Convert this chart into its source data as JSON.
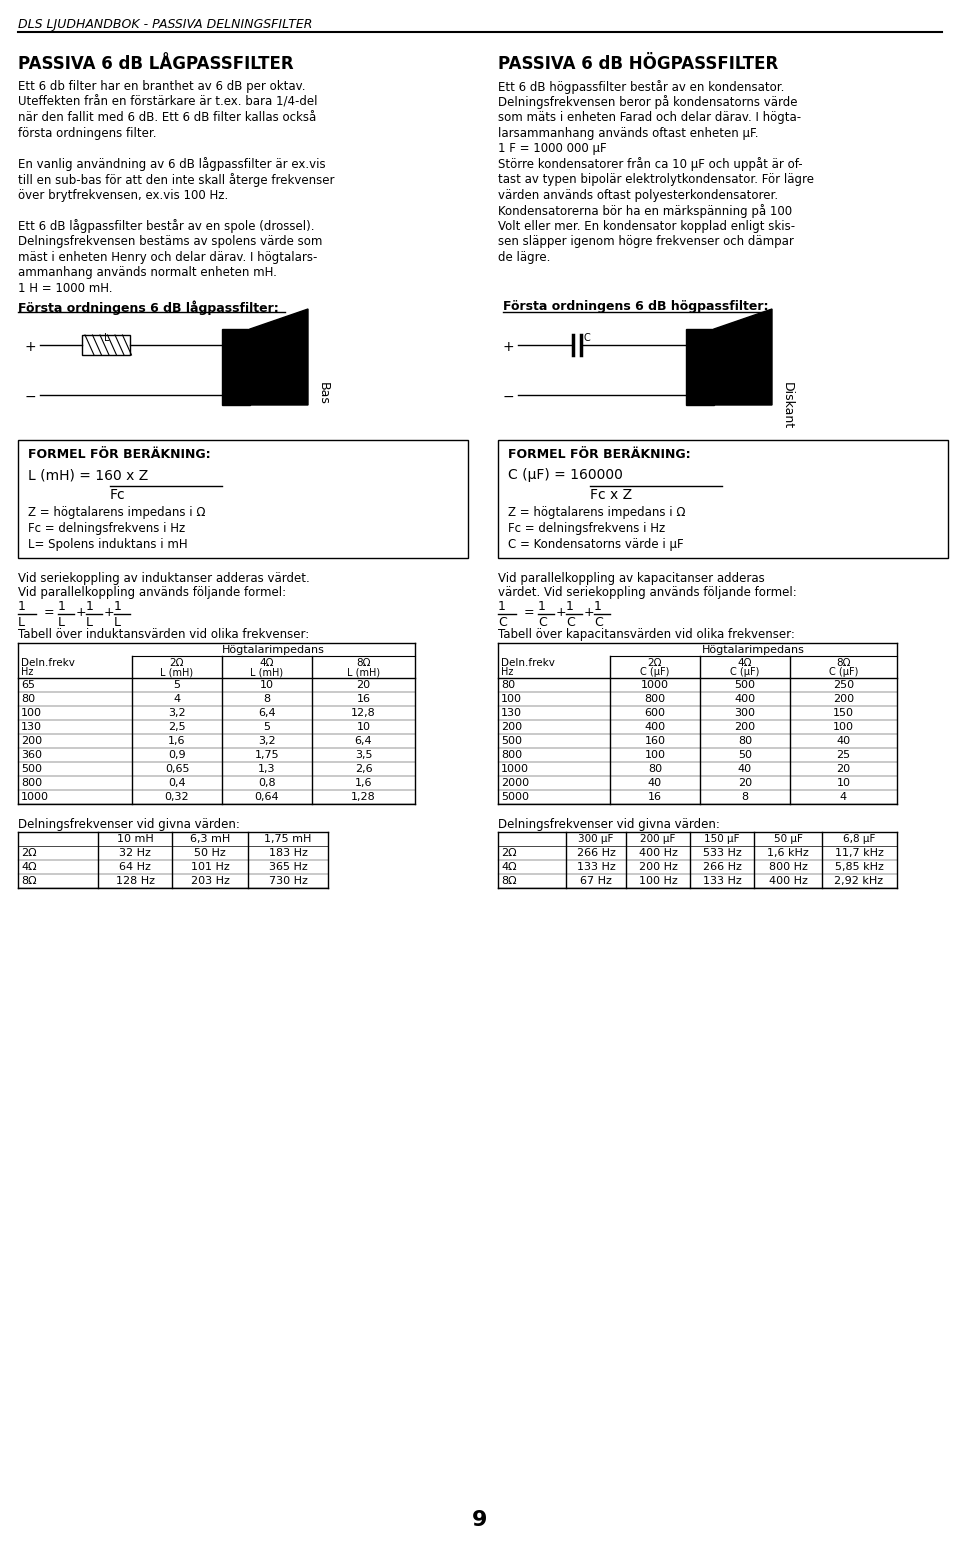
{
  "header_text": "DLS LJUDHANDBOK - PASSIVA DELNINGSFILTER",
  "left_title": "PASSIVA 6 dB LÅGPASSFILTER",
  "right_title": "PASSIVA 6 dB HÖGPASSFILTER",
  "left_body": [
    "Ett 6 db filter har en branthet av 6 dB per oktav.",
    "Uteffekten från en förstärkare är t.ex. bara 1/4-del",
    "när den fallit med 6 dB. Ett 6 dB filter kallas också",
    "första ordningens filter.",
    "",
    "En vanlig användning av 6 dB lågpassfilter är ex.vis",
    "till en sub-bas för att den inte skall återge frekvenser",
    "över brytfrekvensen, ex.vis 100 Hz.",
    "",
    "Ett 6 dB lågpassfilter består av en spole (drossel).",
    "Delningsfrekvensen bestäms av spolens värde som",
    "mäst i enheten Henry och delar därav. I högtalars-",
    "ammanhang används normalt enheten mH.",
    "1 H = 1000 mH."
  ],
  "right_body": [
    "Ett 6 dB högpassfilter består av en kondensator.",
    "Delningsfrekvensen beror på kondensatorns värde",
    "som mäts i enheten Farad och delar därav. I högta-",
    "larsammanhang används oftast enheten µF.",
    "1 F = 1000 000 µF",
    "Större kondensatorer från ca 10 µF och uppåt är of-",
    "tast av typen bipolär elektrolytkondensator. För lägre",
    "värden används oftast polyesterkondensatorer.",
    "Kondensatorerna bör ha en märkspänning på 100",
    "Volt eller mer. En kondensator kopplad enligt skis-",
    "sen släpper igenom högre frekvenser och dämpar",
    "de lägre."
  ],
  "left_circuit_label": "Första ordningens 6 dB lågpassfilter:",
  "right_circuit_label": "Första ordningens 6 dB högpassfilter:",
  "left_speaker_label": "Bas",
  "right_speaker_label": "Diskant",
  "left_formula_title": "FORMEL FÖR BERÄKNING:",
  "right_formula_title": "FORMEL FÖR BERÄKNING:",
  "left_formula_vars": [
    "Z = högtalarens impedans i Ω",
    "Fc = delningsfrekvens i Hz",
    "L= Spolens induktans i mH"
  ],
  "right_formula_vars": [
    "Z = högtalarens impedans i Ω",
    "Fc = delningsfrekvens i Hz",
    "C = Kondensatorns värde i µF"
  ],
  "left_series_text": "Vid seriekoppling av induktanser adderas värdet.",
  "left_parallel_text": "Vid parallelkoppling används följande formel:",
  "right_series_text": "Vid parallelkoppling av kapacitanser adderas",
  "right_series_text2": "värdet. Vid seriekoppling används följande formel:",
  "left_table_title": "Tabell över induktansvärden vid olika frekvenser:",
  "right_table_title": "Tabell över kapacitansvärden vid olika frekvenser:",
  "table_header_imp": "Högtalarimpedans",
  "left_table_headers": [
    "Deln.frekv",
    "2Ω",
    "4Ω",
    "8Ω"
  ],
  "left_table_subheaders": [
    "Hz",
    "L (mH)",
    "L (mH)",
    "L (mH)"
  ],
  "left_table_data": [
    [
      "65",
      "5",
      "10",
      "20"
    ],
    [
      "80",
      "4",
      "8",
      "16"
    ],
    [
      "100",
      "3,2",
      "6,4",
      "12,8"
    ],
    [
      "130",
      "2,5",
      "5",
      "10"
    ],
    [
      "200",
      "1,6",
      "3,2",
      "6,4"
    ],
    [
      "360",
      "0,9",
      "1,75",
      "3,5"
    ],
    [
      "500",
      "0,65",
      "1,3",
      "2,6"
    ],
    [
      "800",
      "0,4",
      "0,8",
      "1,6"
    ],
    [
      "1000",
      "0,32",
      "0,64",
      "1,28"
    ]
  ],
  "right_table_headers": [
    "Deln.frekv",
    "2Ω",
    "4Ω",
    "8Ω"
  ],
  "right_table_subheaders": [
    "Hz",
    "C (µF)",
    "C (µF)",
    "C (µF)"
  ],
  "right_table_data": [
    [
      "80",
      "1000",
      "500",
      "250"
    ],
    [
      "100",
      "800",
      "400",
      "200"
    ],
    [
      "130",
      "600",
      "300",
      "150"
    ],
    [
      "200",
      "400",
      "200",
      "100"
    ],
    [
      "500",
      "160",
      "80",
      "40"
    ],
    [
      "800",
      "100",
      "50",
      "25"
    ],
    [
      "1000",
      "80",
      "40",
      "20"
    ],
    [
      "2000",
      "40",
      "20",
      "10"
    ],
    [
      "5000",
      "16",
      "8",
      "4"
    ]
  ],
  "left_crossover_title": "Delningsfrekvenser vid givna värden:",
  "right_crossover_title": "Delningsfrekvenser vid givna värden:",
  "left_crossover_headers": [
    "10 mH",
    "6,3 mH",
    "1,75 mH"
  ],
  "left_crossover_data": [
    [
      "2Ω",
      "32 Hz",
      "50 Hz",
      "183 Hz"
    ],
    [
      "4Ω",
      "64 Hz",
      "101 Hz",
      "365 Hz"
    ],
    [
      "8Ω",
      "128 Hz",
      "203 Hz",
      "730 Hz"
    ]
  ],
  "right_crossover_headers": [
    "300 µF",
    "200 µF",
    "150 µF",
    "50 µF",
    "6,8 µF"
  ],
  "right_crossover_data": [
    [
      "2Ω",
      "266 Hz",
      "400 Hz",
      "533 Hz",
      "1,6 kHz",
      "11,7 kHz"
    ],
    [
      "4Ω",
      "133 Hz",
      "200 Hz",
      "266 Hz",
      "800 Hz",
      "5,85 kHz"
    ],
    [
      "8Ω",
      "67 Hz",
      "100 Hz",
      "133 Hz",
      "400 Hz",
      "2,92 kHz"
    ]
  ],
  "page_number": "9",
  "bg_color": "#ffffff",
  "text_color": "#000000"
}
